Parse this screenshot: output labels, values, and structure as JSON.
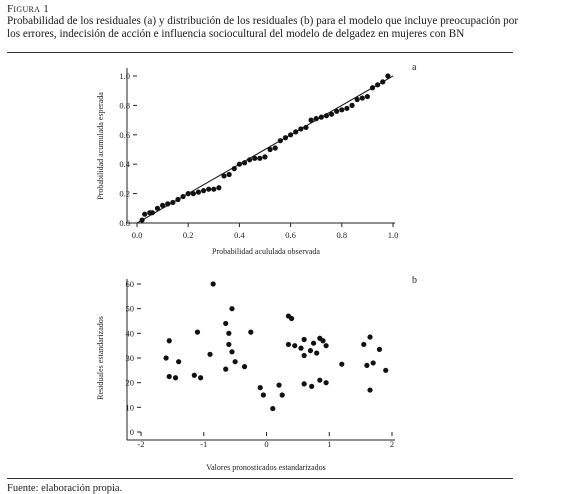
{
  "figure_label": "Figura 1",
  "caption": "Probabilidad de los residuales (a) y distribución de los residuales (b) para el modelo que incluye preocupación por los errores, indecisión de acción e influencia sociocultural del modelo de delgadez en mujeres con BN",
  "source": "Fuente: elaboración propia.",
  "chart_data": [
    {
      "type": "scatter",
      "panel_label": "a",
      "xlabel": "Probabilidad acululada observada",
      "ylabel": "Probabilidad acumulada esperada",
      "xlim": [
        0.0,
        1.0
      ],
      "ylim": [
        0.0,
        1.0
      ],
      "x_ticks": [
        "0.0",
        "0.2",
        "0.4",
        "0.6",
        "0.8",
        "1.0"
      ],
      "y_ticks": [
        "0.0",
        "0.2",
        "0.4",
        "0.6",
        "0.8",
        "1.0"
      ],
      "reference_line": [
        [
          0.0,
          0.0
        ],
        [
          1.0,
          1.0
        ]
      ],
      "points": [
        [
          0.02,
          0.02
        ],
        [
          0.03,
          0.06
        ],
        [
          0.05,
          0.07
        ],
        [
          0.06,
          0.07
        ],
        [
          0.08,
          0.1
        ],
        [
          0.1,
          0.12
        ],
        [
          0.12,
          0.13
        ],
        [
          0.14,
          0.14
        ],
        [
          0.16,
          0.16
        ],
        [
          0.18,
          0.18
        ],
        [
          0.2,
          0.2
        ],
        [
          0.22,
          0.2
        ],
        [
          0.24,
          0.21
        ],
        [
          0.26,
          0.22
        ],
        [
          0.28,
          0.23
        ],
        [
          0.3,
          0.23
        ],
        [
          0.32,
          0.24
        ],
        [
          0.34,
          0.32
        ],
        [
          0.36,
          0.33
        ],
        [
          0.38,
          0.37
        ],
        [
          0.4,
          0.4
        ],
        [
          0.42,
          0.41
        ],
        [
          0.44,
          0.43
        ],
        [
          0.46,
          0.44
        ],
        [
          0.48,
          0.44
        ],
        [
          0.5,
          0.45
        ],
        [
          0.52,
          0.5
        ],
        [
          0.54,
          0.51
        ],
        [
          0.56,
          0.56
        ],
        [
          0.58,
          0.58
        ],
        [
          0.6,
          0.6
        ],
        [
          0.62,
          0.62
        ],
        [
          0.64,
          0.64
        ],
        [
          0.66,
          0.65
        ],
        [
          0.68,
          0.7
        ],
        [
          0.7,
          0.71
        ],
        [
          0.72,
          0.72
        ],
        [
          0.74,
          0.73
        ],
        [
          0.76,
          0.74
        ],
        [
          0.78,
          0.76
        ],
        [
          0.8,
          0.77
        ],
        [
          0.82,
          0.78
        ],
        [
          0.84,
          0.8
        ],
        [
          0.86,
          0.84
        ],
        [
          0.88,
          0.85
        ],
        [
          0.9,
          0.86
        ],
        [
          0.92,
          0.92
        ],
        [
          0.94,
          0.94
        ],
        [
          0.96,
          0.96
        ],
        [
          0.98,
          1.0
        ]
      ]
    },
    {
      "type": "scatter",
      "panel_label": "b",
      "xlabel": "Valores pronosticados estandarizados",
      "ylabel": "Residuales estandarizados",
      "xlim": [
        -2,
        2
      ],
      "ylim": [
        0,
        60
      ],
      "x_ticks": [
        "-2",
        "-1",
        "0",
        "1",
        "2"
      ],
      "y_ticks": [
        "0",
        "10",
        "20",
        "30",
        "40",
        "50",
        "60"
      ],
      "points": [
        [
          -0.85,
          60
        ],
        [
          -0.55,
          50
        ],
        [
          -0.6,
          40
        ],
        [
          -0.65,
          44
        ],
        [
          -1.1,
          40.5
        ],
        [
          -1.55,
          37
        ],
        [
          -1.6,
          30
        ],
        [
          -1.55,
          22.5
        ],
        [
          -1.45,
          22
        ],
        [
          -1.4,
          28.5
        ],
        [
          -1.15,
          23
        ],
        [
          -1.05,
          22
        ],
        [
          -0.9,
          31.5
        ],
        [
          -0.65,
          25.5
        ],
        [
          -0.6,
          35.5
        ],
        [
          -0.55,
          32.5
        ],
        [
          -0.5,
          28.5
        ],
        [
          -0.35,
          26.5
        ],
        [
          -0.25,
          40.5
        ],
        [
          -0.1,
          18
        ],
        [
          -0.05,
          15
        ],
        [
          0.1,
          9.5
        ],
        [
          0.2,
          19
        ],
        [
          0.25,
          15
        ],
        [
          0.35,
          47
        ],
        [
          0.35,
          35.5
        ],
        [
          0.4,
          46
        ],
        [
          0.45,
          35
        ],
        [
          0.55,
          34
        ],
        [
          0.6,
          31
        ],
        [
          0.6,
          37.5
        ],
        [
          0.7,
          33
        ],
        [
          0.75,
          36
        ],
        [
          0.8,
          32
        ],
        [
          0.85,
          38
        ],
        [
          0.9,
          37
        ],
        [
          0.95,
          35
        ],
        [
          0.6,
          19.5
        ],
        [
          0.72,
          18.5
        ],
        [
          0.85,
          21
        ],
        [
          0.95,
          20
        ],
        [
          1.2,
          27.5
        ],
        [
          1.55,
          35.5
        ],
        [
          1.65,
          38.5
        ],
        [
          1.6,
          27
        ],
        [
          1.7,
          28
        ],
        [
          1.8,
          33.5
        ],
        [
          1.65,
          17
        ],
        [
          1.9,
          25
        ]
      ]
    }
  ]
}
